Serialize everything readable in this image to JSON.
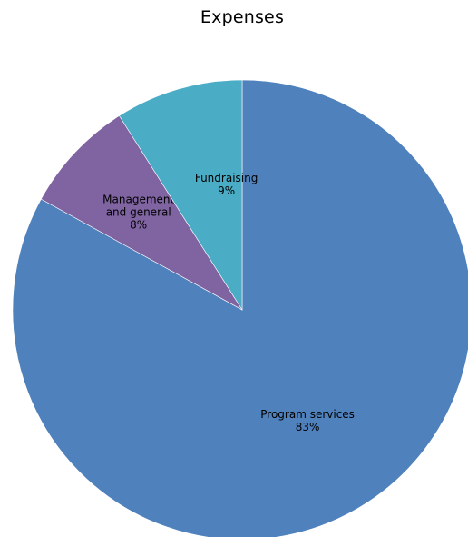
{
  "chart_data": {
    "type": "pie",
    "title": "Expenses",
    "slices": [
      {
        "label": "Program services",
        "label_lines": [
          "Program services"
        ],
        "value": 83,
        "value_label": "83%",
        "color": "#4f81bd"
      },
      {
        "label": "Management and general",
        "label_lines": [
          "Management",
          "and general"
        ],
        "value": 8,
        "value_label": "8%",
        "color": "#8064a2"
      },
      {
        "label": "Fundraising",
        "label_lines": [
          "Fundraising"
        ],
        "value": 9,
        "value_label": "9%",
        "color": "#4bacc6"
      }
    ],
    "start_angle": "12 o'clock",
    "direction": "clockwise",
    "legend": "none"
  }
}
